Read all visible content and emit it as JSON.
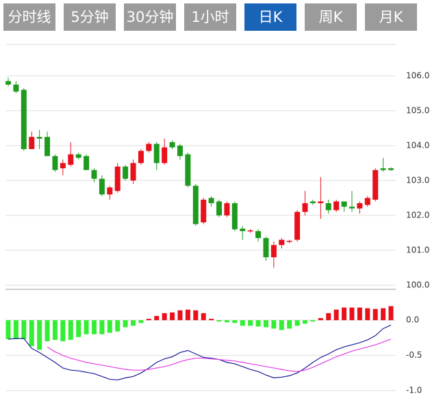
{
  "tabs": [
    "分时线",
    "5分钟",
    "30分钟",
    "1小时",
    "日K",
    "周K",
    "月K"
  ],
  "selected_tab": 4,
  "chart_data": [
    {
      "type": "candlestick",
      "up_color": "#e8101a",
      "down_color": "#1e9a1e",
      "open": [
        105.85,
        105.75,
        105.6,
        103.9,
        104.25,
        104.25,
        103.7,
        103.35,
        103.45,
        103.75,
        103.7,
        103.3,
        103.05,
        102.6,
        102.7,
        103.4,
        103.0,
        103.5,
        103.85,
        104.05,
        103.5,
        104.1,
        104.0,
        103.75,
        102.85,
        101.8,
        102.5,
        102.4,
        102.0,
        102.35,
        101.62,
        101.55,
        101.55,
        101.35,
        100.8,
        101.15,
        101.25,
        101.3,
        102.1,
        102.4,
        102.35,
        102.35,
        102.15,
        102.4,
        102.25,
        102.2,
        102.3,
        102.45,
        103.35,
        103.35
      ],
      "high": [
        105.95,
        105.85,
        105.65,
        104.4,
        104.45,
        104.4,
        103.75,
        103.6,
        104.1,
        103.8,
        103.75,
        103.35,
        103.15,
        102.85,
        103.5,
        103.45,
        103.6,
        103.9,
        104.1,
        104.1,
        104.2,
        104.15,
        104.05,
        103.8,
        102.9,
        102.5,
        102.55,
        102.45,
        102.4,
        102.4,
        101.7,
        101.6,
        101.6,
        101.4,
        101.25,
        101.35,
        101.3,
        102.15,
        102.7,
        102.45,
        103.1,
        102.45,
        102.45,
        102.4,
        102.7,
        102.4,
        102.55,
        103.35,
        103.65,
        103.38
      ],
      "low": [
        105.7,
        105.5,
        103.85,
        103.9,
        103.9,
        103.7,
        103.25,
        103.15,
        103.4,
        103.6,
        103.3,
        102.95,
        102.55,
        102.45,
        102.65,
        103.0,
        102.9,
        103.45,
        103.8,
        103.3,
        103.45,
        103.9,
        103.6,
        102.8,
        101.7,
        101.75,
        102.25,
        101.95,
        101.95,
        101.55,
        101.3,
        101.5,
        101.25,
        100.7,
        100.5,
        101.05,
        101.2,
        101.25,
        102.0,
        102.3,
        101.9,
        102.05,
        102.1,
        102.1,
        102.1,
        102.05,
        102.25,
        102.4,
        103.25,
        103.28
      ],
      "close": [
        105.75,
        105.55,
        103.9,
        104.25,
        104.2,
        103.7,
        103.3,
        103.5,
        103.75,
        103.65,
        103.3,
        103.05,
        102.6,
        102.8,
        103.4,
        103.05,
        103.5,
        103.85,
        104.05,
        103.5,
        103.95,
        103.95,
        103.7,
        102.85,
        101.75,
        102.45,
        102.35,
        102.0,
        102.35,
        101.6,
        101.55,
        101.57,
        101.35,
        100.8,
        101.15,
        101.3,
        101.27,
        102.1,
        102.35,
        102.35,
        102.4,
        102.15,
        102.4,
        102.25,
        102.2,
        102.35,
        102.5,
        103.3,
        103.3,
        103.3
      ],
      "ylim": [
        99.94,
        106.9
      ],
      "yticks": [
        {
          "value": 100,
          "label": "100.0"
        },
        {
          "value": 101,
          "label": "101.0"
        },
        {
          "value": 102,
          "label": "102.0"
        },
        {
          "value": 103,
          "label": "103.0"
        },
        {
          "value": 104,
          "label": "104.0"
        },
        {
          "value": 105,
          "label": "105.0"
        },
        {
          "value": 106,
          "label": "106.0"
        }
      ],
      "grid": true
    },
    {
      "type": "macd",
      "up_color": "#e8101a",
      "down_color": "#33ee33",
      "histogram": [
        -0.27,
        -0.27,
        -0.27,
        -0.37,
        -0.42,
        -0.3,
        -0.28,
        -0.3,
        -0.28,
        -0.24,
        -0.2,
        -0.2,
        -0.2,
        -0.18,
        -0.16,
        -0.1,
        -0.08,
        -0.04,
        0.02,
        0.06,
        0.1,
        0.11,
        0.14,
        0.15,
        0.14,
        0.1,
        0.02,
        -0.02,
        -0.03,
        -0.04,
        -0.08,
        -0.08,
        -0.09,
        -0.1,
        -0.12,
        -0.14,
        -0.12,
        -0.08,
        -0.05,
        -0.02,
        0.03,
        0.1,
        0.15,
        0.18,
        0.18,
        0.18,
        0.17,
        0.16,
        0.17,
        0.2
      ],
      "series": [
        {
          "color": "#1a1a99",
          "values": [
            -0.27,
            -0.26,
            -0.26,
            -0.4,
            -0.46,
            -0.53,
            -0.6,
            -0.68,
            -0.71,
            -0.72,
            -0.74,
            -0.76,
            -0.8,
            -0.84,
            -0.85,
            -0.82,
            -0.8,
            -0.75,
            -0.68,
            -0.6,
            -0.55,
            -0.52,
            -0.46,
            -0.43,
            -0.48,
            -0.53,
            -0.54,
            -0.56,
            -0.6,
            -0.62,
            -0.66,
            -0.7,
            -0.73,
            -0.78,
            -0.82,
            -0.81,
            -0.79,
            -0.75,
            -0.68,
            -0.6,
            -0.53,
            -0.48,
            -0.42,
            -0.38,
            -0.35,
            -0.32,
            -0.28,
            -0.22,
            -0.12,
            -0.07
          ]
        },
        {
          "color": "#e23de2",
          "values": [
            null,
            null,
            null,
            null,
            null,
            -0.38,
            -0.45,
            -0.5,
            -0.54,
            -0.57,
            -0.6,
            -0.62,
            -0.64,
            -0.66,
            -0.68,
            -0.7,
            -0.71,
            -0.71,
            -0.7,
            -0.68,
            -0.66,
            -0.63,
            -0.59,
            -0.56,
            -0.54,
            -0.54,
            -0.55,
            -0.56,
            -0.57,
            -0.58,
            -0.6,
            -0.62,
            -0.64,
            -0.66,
            -0.68,
            -0.7,
            -0.72,
            -0.73,
            -0.71,
            -0.67,
            -0.62,
            -0.57,
            -0.52,
            -0.48,
            -0.44,
            -0.41,
            -0.38,
            -0.35,
            -0.31,
            -0.27
          ]
        }
      ],
      "ylim": [
        -1.0,
        0.4
      ],
      "yticks": [
        {
          "value": 0,
          "label": "0.0"
        },
        {
          "value": -0.5,
          "label": "-0.5"
        },
        {
          "value": -1.0,
          "label": "-1.0"
        }
      ],
      "grid": true
    }
  ]
}
